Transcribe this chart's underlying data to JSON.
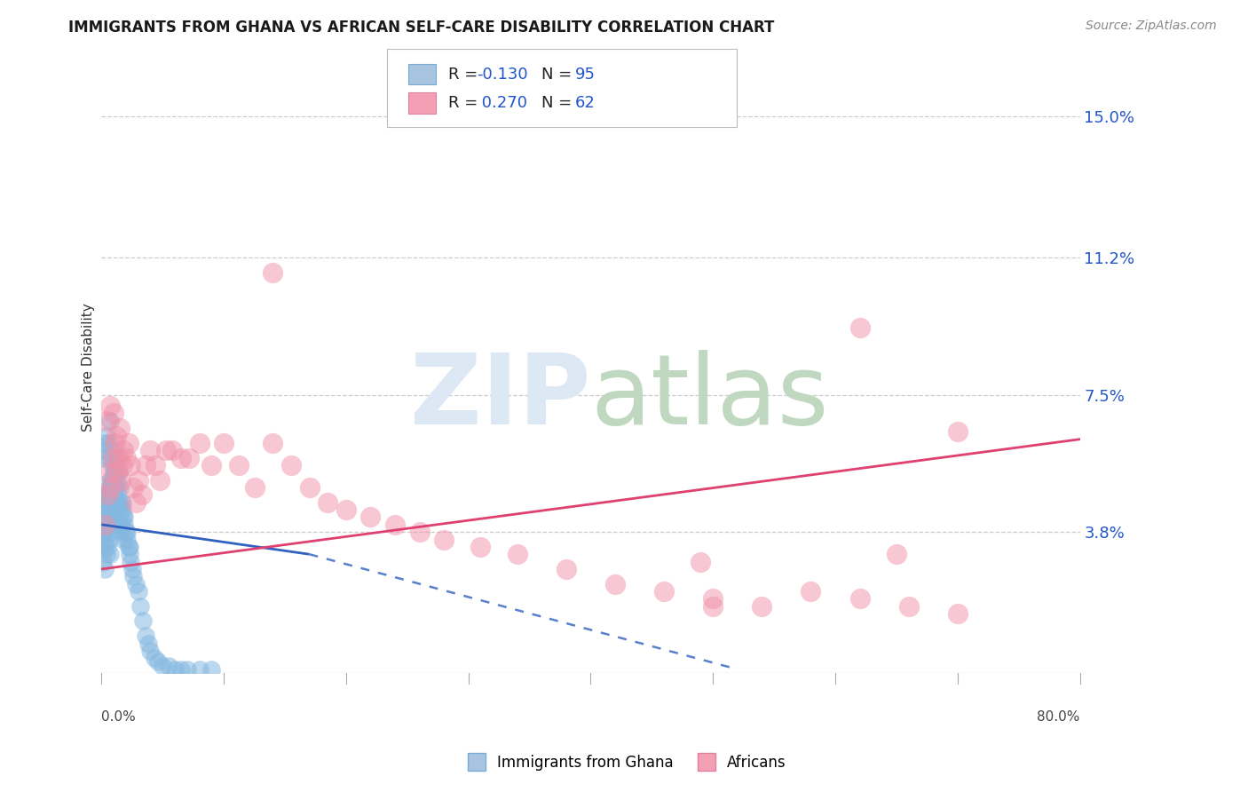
{
  "title": "IMMIGRANTS FROM GHANA VS AFRICAN SELF-CARE DISABILITY CORRELATION CHART",
  "source": "Source: ZipAtlas.com",
  "ylabel": "Self-Care Disability",
  "ytick_values": [
    0.038,
    0.075,
    0.112,
    0.15
  ],
  "ytick_labels": [
    "3.8%",
    "7.5%",
    "11.2%",
    "15.0%"
  ],
  "xlim": [
    0.0,
    0.8
  ],
  "ylim": [
    0.0,
    0.165
  ],
  "series1_color": "#85b8e0",
  "series2_color": "#f090a8",
  "trendline1_solid_color": "#3060c0",
  "trendline2_color": "#e04070",
  "grid_color": "#cccccc",
  "watermark_ZIP_color": "#dde8f5",
  "watermark_atlas_color": "#c0d8c0",
  "ghana_R": "-0.130",
  "ghana_N": "95",
  "africans_R": "0.270",
  "africans_N": "62",
  "R_color": "#2255cc",
  "N_color": "#2255cc",
  "legend_text_color": "#222222",
  "legend_sq1_fill": "#a8c4e0",
  "legend_sq1_edge": "#7aadd4",
  "legend_sq2_fill": "#f4a0b4",
  "legend_sq2_edge": "#e080a0",
  "bottom_label1": "Immigrants from Ghana",
  "bottom_label2": "Africans",
  "title_color": "#1a1a1a",
  "source_color": "#888888",
  "axis_label_color": "#444444",
  "ghana_x": [
    0.001,
    0.001,
    0.002,
    0.002,
    0.002,
    0.002,
    0.002,
    0.003,
    0.003,
    0.003,
    0.003,
    0.003,
    0.004,
    0.004,
    0.004,
    0.004,
    0.005,
    0.005,
    0.005,
    0.005,
    0.006,
    0.006,
    0.006,
    0.007,
    0.007,
    0.007,
    0.007,
    0.008,
    0.008,
    0.008,
    0.009,
    0.009,
    0.009,
    0.01,
    0.01,
    0.01,
    0.011,
    0.011,
    0.012,
    0.012,
    0.012,
    0.013,
    0.013,
    0.014,
    0.014,
    0.015,
    0.015,
    0.016,
    0.016,
    0.017,
    0.018,
    0.018,
    0.019,
    0.02,
    0.021,
    0.022,
    0.023,
    0.024,
    0.025,
    0.026,
    0.028,
    0.03,
    0.032,
    0.034,
    0.036,
    0.038,
    0.04,
    0.043,
    0.046,
    0.05,
    0.055,
    0.06,
    0.065,
    0.07,
    0.08,
    0.09,
    0.001,
    0.002,
    0.003,
    0.004,
    0.005,
    0.006,
    0.007,
    0.008,
    0.009,
    0.01,
    0.011,
    0.012,
    0.013,
    0.014,
    0.015,
    0.017,
    0.019,
    0.021,
    0.023
  ],
  "ghana_y": [
    0.03,
    0.038,
    0.033,
    0.038,
    0.042,
    0.045,
    0.035,
    0.04,
    0.044,
    0.048,
    0.035,
    0.028,
    0.042,
    0.046,
    0.038,
    0.032,
    0.044,
    0.048,
    0.04,
    0.034,
    0.046,
    0.05,
    0.036,
    0.048,
    0.052,
    0.042,
    0.032,
    0.05,
    0.044,
    0.038,
    0.052,
    0.046,
    0.04,
    0.054,
    0.048,
    0.042,
    0.05,
    0.044,
    0.052,
    0.046,
    0.04,
    0.048,
    0.042,
    0.046,
    0.04,
    0.044,
    0.038,
    0.046,
    0.04,
    0.044,
    0.042,
    0.036,
    0.04,
    0.038,
    0.036,
    0.034,
    0.032,
    0.03,
    0.028,
    0.026,
    0.024,
    0.022,
    0.018,
    0.014,
    0.01,
    0.008,
    0.006,
    0.004,
    0.003,
    0.002,
    0.002,
    0.001,
    0.001,
    0.001,
    0.001,
    0.001,
    0.058,
    0.06,
    0.062,
    0.064,
    0.058,
    0.062,
    0.068,
    0.052,
    0.056,
    0.06,
    0.054,
    0.05,
    0.058,
    0.054,
    0.05,
    0.046,
    0.042,
    0.038,
    0.034
  ],
  "africans_x": [
    0.003,
    0.004,
    0.005,
    0.006,
    0.007,
    0.008,
    0.009,
    0.01,
    0.011,
    0.012,
    0.013,
    0.014,
    0.015,
    0.016,
    0.017,
    0.018,
    0.02,
    0.022,
    0.024,
    0.026,
    0.028,
    0.03,
    0.033,
    0.036,
    0.04,
    0.044,
    0.048,
    0.053,
    0.058,
    0.065,
    0.072,
    0.08,
    0.09,
    0.1,
    0.112,
    0.125,
    0.14,
    0.155,
    0.17,
    0.185,
    0.2,
    0.22,
    0.24,
    0.26,
    0.28,
    0.31,
    0.34,
    0.38,
    0.42,
    0.46,
    0.5,
    0.54,
    0.58,
    0.62,
    0.66,
    0.7,
    0.14,
    0.62,
    0.7,
    0.49,
    0.5,
    0.65
  ],
  "africans_y": [
    0.04,
    0.068,
    0.048,
    0.054,
    0.072,
    0.05,
    0.058,
    0.07,
    0.062,
    0.064,
    0.054,
    0.058,
    0.066,
    0.052,
    0.056,
    0.06,
    0.058,
    0.062,
    0.056,
    0.05,
    0.046,
    0.052,
    0.048,
    0.056,
    0.06,
    0.056,
    0.052,
    0.06,
    0.06,
    0.058,
    0.058,
    0.062,
    0.056,
    0.062,
    0.056,
    0.05,
    0.062,
    0.056,
    0.05,
    0.046,
    0.044,
    0.042,
    0.04,
    0.038,
    0.036,
    0.034,
    0.032,
    0.028,
    0.024,
    0.022,
    0.02,
    0.018,
    0.022,
    0.02,
    0.018,
    0.016,
    0.108,
    0.093,
    0.065,
    0.03,
    0.018,
    0.032
  ]
}
